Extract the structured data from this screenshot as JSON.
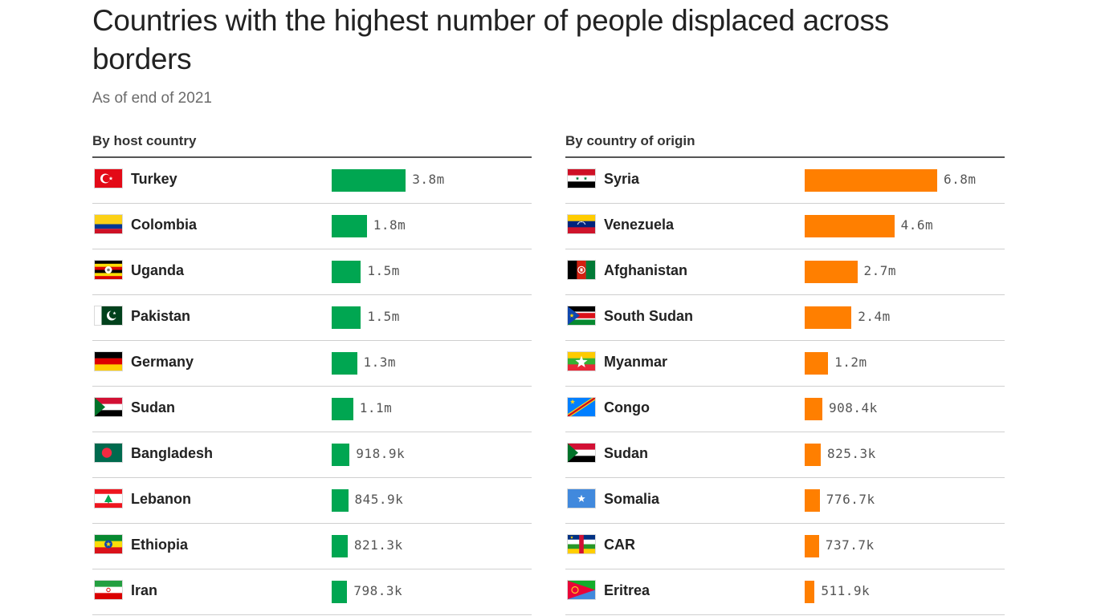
{
  "title": "Countries with the highest number of people displaced across borders",
  "subtitle": "As of end of 2021",
  "colors": {
    "host": "#00a651",
    "origin": "#ff7f00"
  },
  "chart_data": [
    {
      "type": "bar",
      "orientation": "horizontal",
      "title": "By host country",
      "categories": [
        "Turkey",
        "Colombia",
        "Uganda",
        "Pakistan",
        "Germany",
        "Sudan",
        "Bangladesh",
        "Lebanon",
        "Ethiopia",
        "Iran"
      ],
      "values": [
        3800000,
        1800000,
        1500000,
        1500000,
        1300000,
        1100000,
        918900,
        845900,
        821300,
        798300
      ],
      "labels": [
        "3.8m",
        "1.8m",
        "1.5m",
        "1.5m",
        "1.3m",
        "1.1m",
        "918.9k",
        "845.9k",
        "821.3k",
        "798.3k"
      ],
      "flags": [
        "turkey",
        "colombia",
        "uganda",
        "pakistan",
        "germany",
        "sudan",
        "bangladesh",
        "lebanon",
        "ethiopia",
        "iran"
      ],
      "color": "#00a651",
      "xlim": [
        0,
        6800000
      ]
    },
    {
      "type": "bar",
      "orientation": "horizontal",
      "title": "By country of origin",
      "categories": [
        "Syria",
        "Venezuela",
        "Afghanistan",
        "South Sudan",
        "Myanmar",
        "Congo",
        "Sudan",
        "Somalia",
        "CAR",
        "Eritrea"
      ],
      "values": [
        6800000,
        4600000,
        2700000,
        2400000,
        1200000,
        908400,
        825300,
        776700,
        737700,
        511900
      ],
      "labels": [
        "6.8m",
        "4.6m",
        "2.7m",
        "2.4m",
        "1.2m",
        "908.4k",
        "825.3k",
        "776.7k",
        "737.7k",
        "511.9k"
      ],
      "flags": [
        "syria",
        "venezuela",
        "afghanistan",
        "south-sudan",
        "myanmar",
        "congo",
        "sudan",
        "somalia",
        "car",
        "eritrea"
      ],
      "color": "#ff7f00",
      "xlim": [
        0,
        6800000
      ]
    }
  ]
}
